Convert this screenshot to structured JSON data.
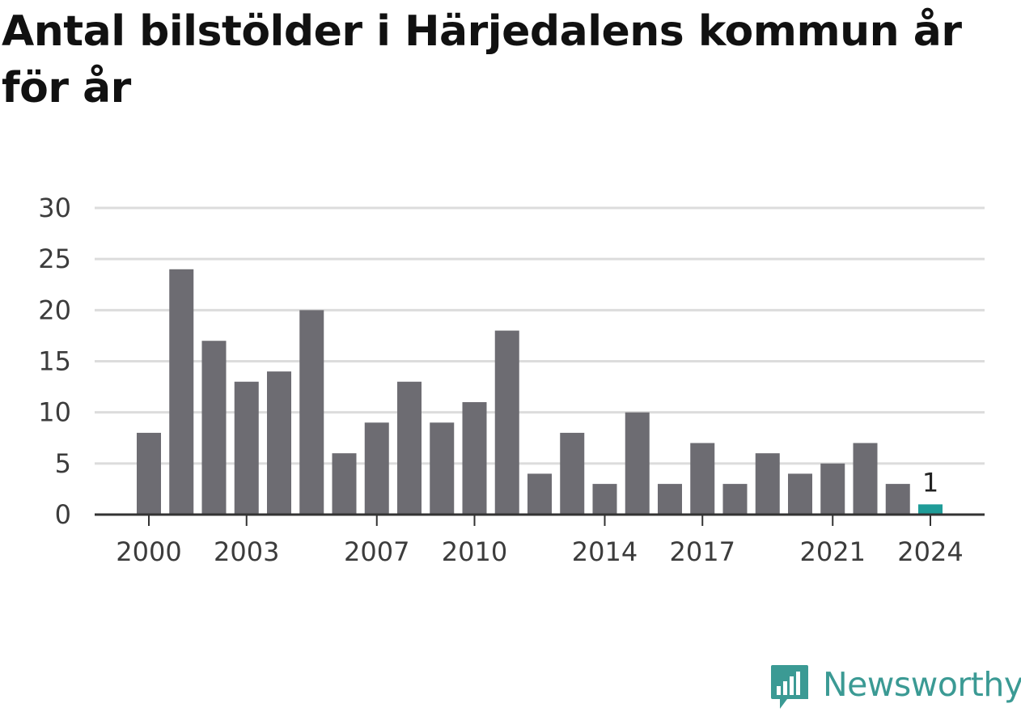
{
  "title": "Antal bilstölder i Härjedalens kommun år för år",
  "brand": {
    "name": "Newsworthy",
    "icon": "newsworthy-logo-icon",
    "color": "#3b9a94"
  },
  "chart_data": {
    "type": "bar",
    "title": "Antal bilstölder i Härjedalens kommun år för år",
    "xlabel": "",
    "ylabel": "",
    "categories": [
      "2000",
      "2001",
      "2002",
      "2003",
      "2004",
      "2005",
      "2006",
      "2007",
      "2008",
      "2009",
      "2010",
      "2011",
      "2012",
      "2013",
      "2014",
      "2015",
      "2016",
      "2017",
      "2018",
      "2019",
      "2020",
      "2021",
      "2022",
      "2023",
      "2024"
    ],
    "values": [
      8,
      24,
      17,
      13,
      14,
      20,
      6,
      9,
      13,
      9,
      11,
      18,
      4,
      8,
      3,
      10,
      3,
      7,
      3,
      6,
      4,
      5,
      7,
      3,
      1
    ],
    "ylim": [
      0,
      30
    ],
    "yticks": [
      0,
      5,
      10,
      15,
      20,
      25,
      30
    ],
    "xticks": [
      "2000",
      "2003",
      "2007",
      "2010",
      "2014",
      "2017",
      "2021",
      "2024"
    ],
    "grid": true,
    "bar_color": "#6d6c72",
    "highlight_color": "#1f9c98",
    "highlight_category": "2024",
    "data_labels": [
      {
        "category": "2024",
        "text": "1"
      }
    ]
  }
}
